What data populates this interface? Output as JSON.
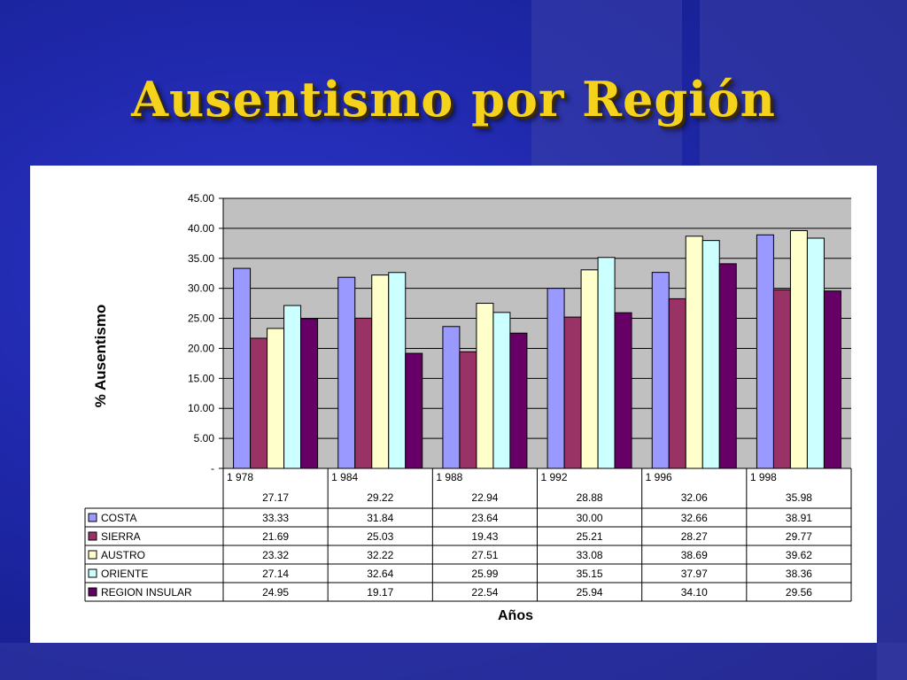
{
  "slide": {
    "title": "Ausentismo por Región"
  },
  "chart_data": {
    "type": "bar",
    "title": "",
    "xlabel": "Años",
    "ylabel": "% Ausentismo",
    "ylim": [
      0,
      45
    ],
    "yticks": [
      "-",
      "5.00",
      "10.00",
      "15.00",
      "20.00",
      "25.00",
      "30.00",
      "35.00",
      "40.00",
      "45.00"
    ],
    "categories": [
      "1 978",
      "1 984",
      "1 988",
      "1 992",
      "1 996",
      "1 998"
    ],
    "totals": [
      "27.17",
      "29.22",
      "22.94",
      "28.88",
      "32.06",
      "35.98"
    ],
    "grid": true,
    "legend": "table-left",
    "series": [
      {
        "name": "COSTA",
        "color": "#9999ff",
        "values": [
          33.33,
          31.84,
          23.64,
          30.0,
          32.66,
          38.91
        ],
        "labels": [
          "33.33",
          "31.84",
          "23.64",
          "30.00",
          "32.66",
          "38.91"
        ]
      },
      {
        "name": "SIERRA",
        "color": "#993366",
        "values": [
          21.69,
          25.03,
          19.43,
          25.21,
          28.27,
          29.77
        ],
        "labels": [
          "21.69",
          "25.03",
          "19.43",
          "25.21",
          "28.27",
          "29.77"
        ]
      },
      {
        "name": "AUSTRO",
        "color": "#ffffcc",
        "values": [
          23.32,
          32.22,
          27.51,
          33.08,
          38.69,
          39.62
        ],
        "labels": [
          "23.32",
          "32.22",
          "27.51",
          "33.08",
          "38.69",
          "39.62"
        ]
      },
      {
        "name": "ORIENTE",
        "color": "#ccffff",
        "values": [
          27.14,
          32.64,
          25.99,
          35.15,
          37.97,
          38.36
        ],
        "labels": [
          "27.14",
          "32.64",
          "25.99",
          "35.15",
          "37.97",
          "38.36"
        ]
      },
      {
        "name": "REGION INSULAR",
        "color": "#660066",
        "values": [
          24.95,
          19.17,
          22.54,
          25.94,
          34.1,
          29.56
        ],
        "labels": [
          "24.95",
          "19.17",
          "22.54",
          "25.94",
          "34.10",
          "29.56"
        ]
      }
    ],
    "plot_bg": "#c0c0c0"
  }
}
